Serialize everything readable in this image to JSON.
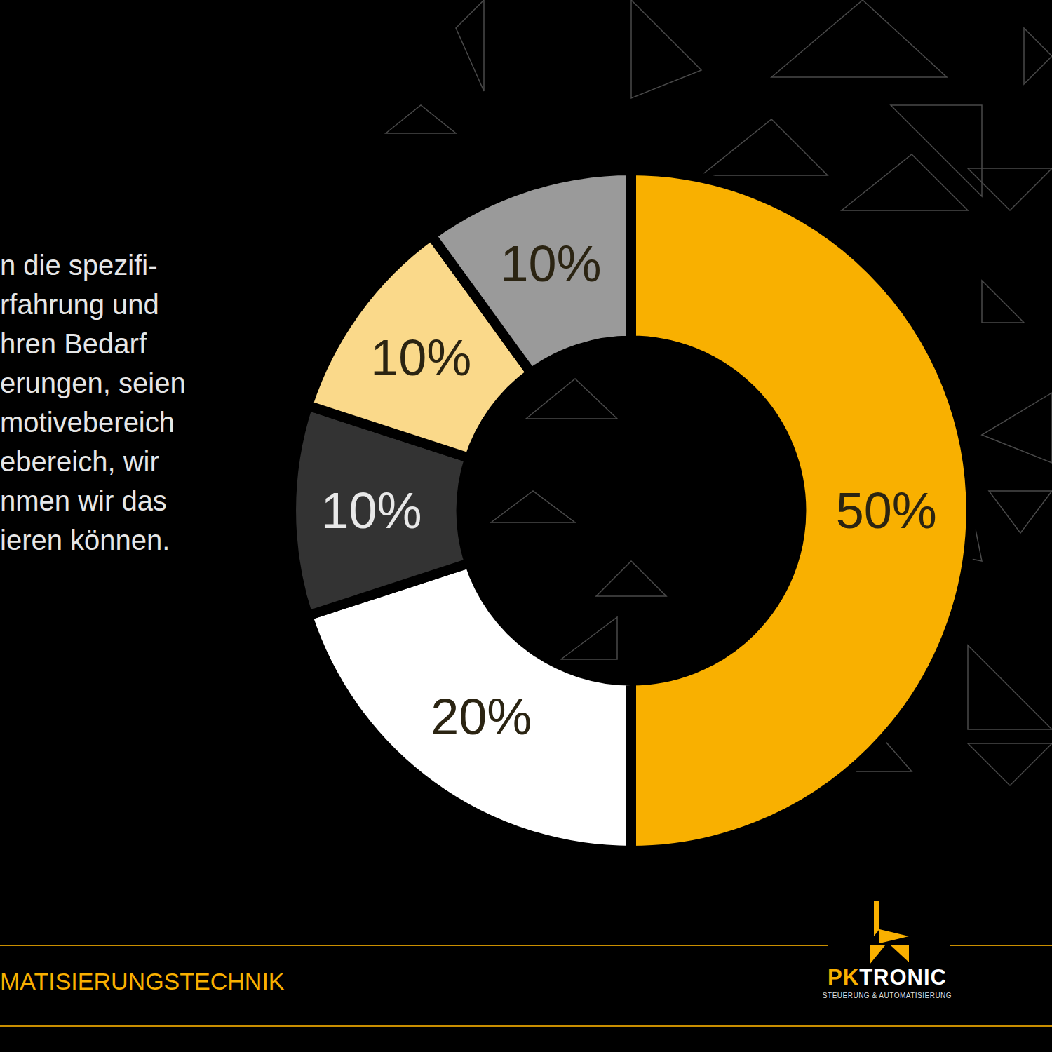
{
  "chart_data": {
    "type": "donut",
    "values": [
      50,
      20,
      10,
      10,
      10
    ],
    "value_labels": [
      "50%",
      "20%",
      "10%",
      "10%",
      "10%"
    ],
    "colors": [
      "#f9b000",
      "#ffffff",
      "#333333",
      "#fad98a",
      "#9a9a9a"
    ],
    "data_labels": true,
    "legend": false
  },
  "text": {
    "paragraph_lines": [
      "n die spezifi-",
      "rfahrung und",
      "hren Bedarf",
      "erungen, seien",
      "motivebereich",
      "ebereich, wir",
      "nmen wir das",
      "ieren können."
    ],
    "footer": "MATISIERUNGSTECHNIK",
    "logo": {
      "part1": "PK",
      "part2": "TRONIC",
      "tagline": "STEUERUNG & AUTOMATISIERUNG"
    }
  }
}
